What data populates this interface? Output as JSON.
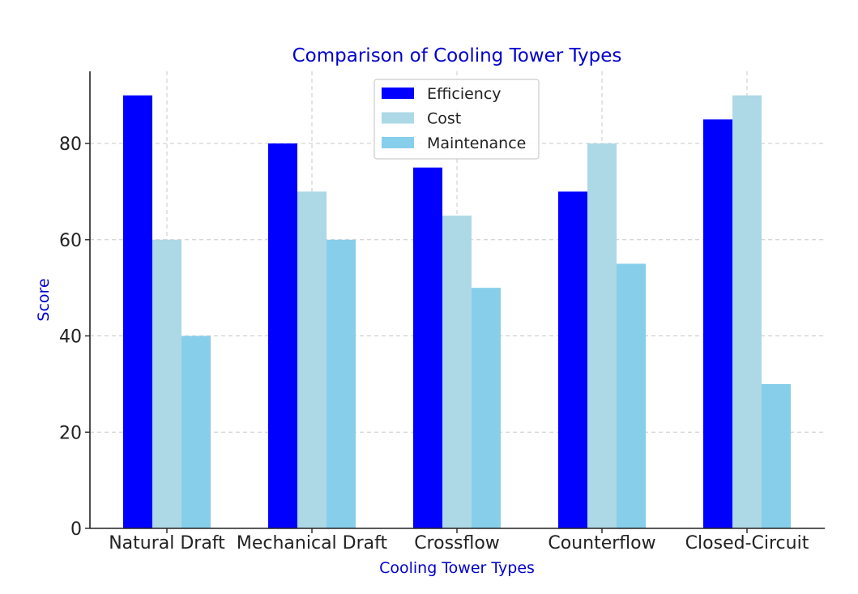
{
  "chart_data": {
    "type": "bar",
    "title": "Comparison of Cooling Tower Types",
    "xlabel": "Cooling Tower Types",
    "ylabel": "Score",
    "categories": [
      "Natural Draft",
      "Mechanical Draft",
      "Crossflow",
      "Counterflow",
      "Closed-Circuit"
    ],
    "series": [
      {
        "name": "Efficiency",
        "color": "#0000ff",
        "values": [
          90,
          80,
          75,
          70,
          85
        ]
      },
      {
        "name": "Cost",
        "color": "#add8e6",
        "values": [
          60,
          70,
          65,
          80,
          90
        ]
      },
      {
        "name": "Maintenance",
        "color": "#87ceeb",
        "values": [
          40,
          60,
          50,
          55,
          30
        ]
      }
    ],
    "ylim": [
      0,
      95
    ],
    "yticks": [
      0,
      20,
      40,
      60,
      80
    ],
    "grid": true,
    "legend_position": "top-center",
    "title_color": "#0000cd",
    "label_color": "#0000cd"
  }
}
